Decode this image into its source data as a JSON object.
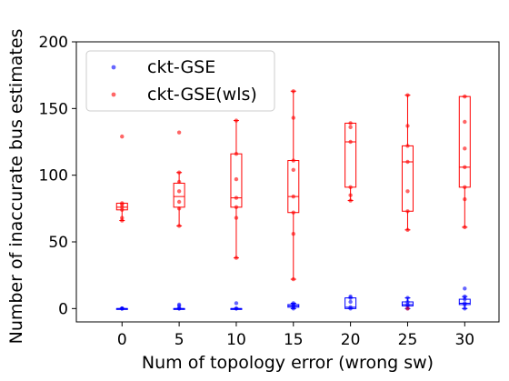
{
  "chart_data": {
    "type": "box",
    "title": "",
    "xlabel": "Num of topology error (wrong sw)",
    "ylabel": "Number of inaccurate bus estimates",
    "x_ticks": [
      0,
      5,
      10,
      15,
      20,
      25,
      30
    ],
    "y_ticks": [
      0,
      50,
      100,
      150,
      200
    ],
    "xlim": [
      -4,
      33
    ],
    "ylim": [
      -10,
      200
    ],
    "grid": false,
    "legend_position": "upper-left",
    "series": [
      {
        "name": "ckt-GSE",
        "color": "#0000ff",
        "boxes": [
          {
            "x": 0,
            "whislo": 0,
            "q1": 0,
            "med": 0,
            "q3": 0,
            "whishi": 0
          },
          {
            "x": 5,
            "whislo": 0,
            "q1": 0,
            "med": 0,
            "q3": 0,
            "whishi": 0
          },
          {
            "x": 10,
            "whislo": 0,
            "q1": 0,
            "med": 0,
            "q3": 0,
            "whishi": 0
          },
          {
            "x": 15,
            "whislo": 0,
            "q1": 1,
            "med": 2,
            "q3": 3,
            "whishi": 4
          },
          {
            "x": 20,
            "whislo": 0,
            "q1": 0,
            "med": 1,
            "q3": 8,
            "whishi": 8
          },
          {
            "x": 25,
            "whislo": 0,
            "q1": 2,
            "med": 3,
            "q3": 5,
            "whishi": 8
          },
          {
            "x": 30,
            "whislo": 0,
            "q1": 3,
            "med": 4,
            "q3": 7,
            "whishi": 9
          }
        ],
        "points": [
          [
            0,
            0
          ],
          [
            0,
            0
          ],
          [
            0,
            0
          ],
          [
            0,
            0
          ],
          [
            5,
            0
          ],
          [
            5,
            0
          ],
          [
            5,
            2
          ],
          [
            5,
            3
          ],
          [
            10,
            0
          ],
          [
            10,
            0
          ],
          [
            10,
            4
          ],
          [
            15,
            0
          ],
          [
            15,
            1
          ],
          [
            15,
            2
          ],
          [
            15,
            3
          ],
          [
            15,
            4
          ],
          [
            20,
            0
          ],
          [
            20,
            1
          ],
          [
            20,
            5
          ],
          [
            20,
            8
          ],
          [
            20,
            9
          ],
          [
            25,
            0
          ],
          [
            25,
            2
          ],
          [
            25,
            3
          ],
          [
            25,
            5
          ],
          [
            25,
            8
          ],
          [
            30,
            0
          ],
          [
            30,
            3
          ],
          [
            30,
            4
          ],
          [
            30,
            7
          ],
          [
            30,
            9
          ],
          [
            30,
            15
          ]
        ]
      },
      {
        "name": "ckt-GSE(wls)",
        "color": "#ff0000",
        "boxes": [
          {
            "x": 0,
            "whislo": 66,
            "q1": 74,
            "med": 76,
            "q3": 79,
            "whishi": 79
          },
          {
            "x": 5,
            "whislo": 62,
            "q1": 76,
            "med": 84,
            "q3": 94,
            "whishi": 102
          },
          {
            "x": 10,
            "whislo": 38,
            "q1": 76,
            "med": 83,
            "q3": 116,
            "whishi": 141
          },
          {
            "x": 15,
            "whislo": 22,
            "q1": 72,
            "med": 84,
            "q3": 111,
            "whishi": 163
          },
          {
            "x": 20,
            "whislo": 81,
            "q1": 91,
            "med": 125,
            "q3": 139,
            "whishi": 139
          },
          {
            "x": 25,
            "whislo": 59,
            "q1": 73,
            "med": 110,
            "q3": 122,
            "whishi": 160
          },
          {
            "x": 30,
            "whislo": 61,
            "q1": 91,
            "med": 106,
            "q3": 159,
            "whishi": 159
          }
        ],
        "points": [
          [
            0,
            66
          ],
          [
            0,
            68
          ],
          [
            0,
            74
          ],
          [
            0,
            76
          ],
          [
            0,
            78
          ],
          [
            0,
            79
          ],
          [
            0,
            129
          ],
          [
            5,
            62
          ],
          [
            5,
            75
          ],
          [
            5,
            80
          ],
          [
            5,
            88
          ],
          [
            5,
            95
          ],
          [
            5,
            102
          ],
          [
            5,
            132
          ],
          [
            10,
            38
          ],
          [
            10,
            68
          ],
          [
            10,
            76
          ],
          [
            10,
            83
          ],
          [
            10,
            97
          ],
          [
            10,
            116
          ],
          [
            10,
            141
          ],
          [
            15,
            22
          ],
          [
            15,
            56
          ],
          [
            15,
            72
          ],
          [
            15,
            84
          ],
          [
            15,
            104
          ],
          [
            15,
            111
          ],
          [
            15,
            143
          ],
          [
            15,
            163
          ],
          [
            20,
            81
          ],
          [
            20,
            85
          ],
          [
            20,
            91
          ],
          [
            20,
            125
          ],
          [
            20,
            136
          ],
          [
            20,
            139
          ],
          [
            25,
            0
          ],
          [
            25,
            59
          ],
          [
            25,
            73
          ],
          [
            25,
            88
          ],
          [
            25,
            110
          ],
          [
            25,
            122
          ],
          [
            25,
            137
          ],
          [
            25,
            160
          ],
          [
            30,
            61
          ],
          [
            30,
            82
          ],
          [
            30,
            91
          ],
          [
            30,
            106
          ],
          [
            30,
            120
          ],
          [
            30,
            140
          ],
          [
            30,
            159
          ]
        ]
      }
    ]
  }
}
